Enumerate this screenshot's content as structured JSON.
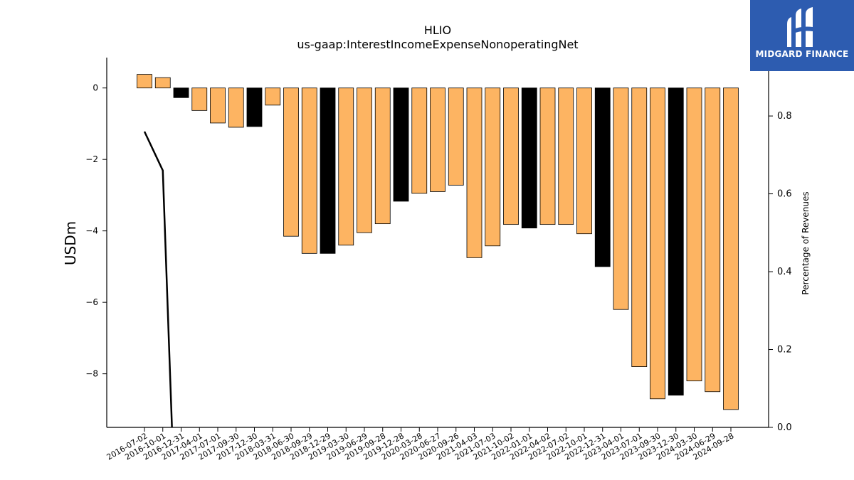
{
  "chart_data": {
    "type": "bar",
    "title": "HLIO",
    "subtitle": "us-gaap:InterestIncomeExpenseNonoperatingNet",
    "ylabel": "USDm",
    "y2label": "Percentage of Revenues",
    "ylim": [
      -9.5,
      0.85
    ],
    "y2lim": [
      0.0,
      0.95
    ],
    "yticks": [
      0,
      -2,
      -4,
      -6,
      -8
    ],
    "y2ticks": [
      0.0,
      0.2,
      0.4,
      0.6,
      0.8
    ],
    "categories": [
      "2016-07-02",
      "2016-10-01",
      "2016-12-31",
      "2017-04-01",
      "2017-07-01",
      "2017-09-30",
      "2017-12-30",
      "2018-03-31",
      "2018-06-30",
      "2018-09-29",
      "2018-12-29",
      "2019-03-30",
      "2019-06-29",
      "2019-09-28",
      "2019-12-28",
      "2020-03-28",
      "2020-06-27",
      "2020-09-26",
      "2021-04-03",
      "2021-07-03",
      "2021-10-02",
      "2022-01-01",
      "2022-04-02",
      "2022-07-02",
      "2022-10-01",
      "2022-12-31",
      "2023-04-01",
      "2023-07-01",
      "2023-09-30",
      "2023-12-30",
      "2024-03-30",
      "2024-06-29",
      "2024-09-28"
    ],
    "values": [
      0.38,
      0.29,
      -0.27,
      -0.63,
      -0.98,
      -1.1,
      -1.08,
      -0.48,
      -4.15,
      -4.63,
      -4.63,
      -4.4,
      -4.05,
      -3.8,
      -3.17,
      -2.95,
      -2.9,
      -2.72,
      -4.75,
      -4.42,
      -3.82,
      -3.92,
      -3.82,
      -3.82,
      -4.08,
      -5.0,
      -6.2,
      -7.8,
      -8.7,
      -8.6,
      -8.2,
      -8.5,
      -9.0
    ],
    "bar_colors": [
      "#fdb462",
      "#fdb462",
      "#000000",
      "#fdb462",
      "#fdb462",
      "#fdb462",
      "#000000",
      "#fdb462",
      "#fdb462",
      "#fdb462",
      "#000000",
      "#fdb462",
      "#fdb462",
      "#fdb462",
      "#000000",
      "#fdb462",
      "#fdb462",
      "#fdb462",
      "#fdb462",
      "#fdb462",
      "#fdb462",
      "#000000",
      "#fdb462",
      "#fdb462",
      "#fdb462",
      "#000000",
      "#fdb462",
      "#fdb462",
      "#fdb462",
      "#000000",
      "#fdb462",
      "#fdb462",
      "#fdb462"
    ],
    "line_series": {
      "x_index": [
        0,
        1,
        1.5
      ],
      "values": [
        0.76,
        0.66,
        0.0
      ]
    },
    "colors": {
      "bar": "#fdb462",
      "highlight": "#000000",
      "line": "#000000"
    }
  },
  "logo": {
    "text": "MIDGARD FINANCE",
    "background": "#2d5cb0"
  }
}
